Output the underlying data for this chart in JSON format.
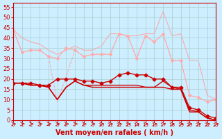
{
  "bg_color": "#cceeff",
  "grid_color": "#aacccc",
  "xlabel": "Vent moyen/en rafales ( km/h )",
  "xlabel_color": "#cc0000",
  "xlabel_fontsize": 7,
  "tick_color": "#cc0000",
  "tick_fontsize": 6,
  "ylim": [
    0,
    57
  ],
  "xlim": [
    0,
    23
  ],
  "yticks": [
    0,
    5,
    10,
    15,
    20,
    25,
    30,
    35,
    40,
    45,
    50,
    55
  ],
  "xticks": [
    0,
    1,
    2,
    3,
    4,
    5,
    6,
    7,
    8,
    9,
    10,
    11,
    12,
    13,
    14,
    15,
    16,
    17,
    18,
    19,
    20,
    21,
    22,
    23
  ],
  "arrow_color": "#cc0000",
  "y_light1": [
    44,
    40,
    38,
    37,
    34,
    32,
    34,
    36,
    34,
    34,
    36,
    42,
    42,
    41,
    41,
    42,
    42,
    53,
    41,
    42,
    29,
    29,
    12,
    10
  ],
  "y_light2": [
    44,
    33,
    34,
    34,
    31,
    30,
    35,
    34,
    31,
    32,
    32,
    32,
    42,
    41,
    30,
    41,
    38,
    42,
    29,
    29,
    12,
    11,
    9,
    10
  ],
  "y_light3": [
    44,
    33,
    34,
    34,
    31,
    9,
    21,
    34,
    31,
    32,
    32,
    32,
    42,
    41,
    30,
    41,
    38,
    42,
    29,
    29,
    12,
    11,
    9,
    10
  ],
  "y_dark1": [
    18,
    18,
    17,
    17,
    16,
    10,
    16,
    19,
    17,
    16,
    16,
    16,
    16,
    16,
    16,
    16,
    16,
    16,
    15,
    15,
    4,
    4,
    1,
    0
  ],
  "y_dark2": [
    18,
    18,
    17,
    17,
    16,
    10,
    16,
    19,
    17,
    17,
    17,
    17,
    17,
    17,
    17,
    16,
    16,
    19,
    16,
    15,
    5,
    4,
    1,
    0
  ],
  "y_dark3": [
    18,
    18,
    18,
    17,
    17,
    20,
    20,
    20,
    19,
    19,
    18,
    19,
    22,
    23,
    22,
    22,
    20,
    20,
    16,
    16,
    6,
    5,
    2,
    1
  ],
  "light_color": "#ffaaaa",
  "dark_color": "#cc0000"
}
